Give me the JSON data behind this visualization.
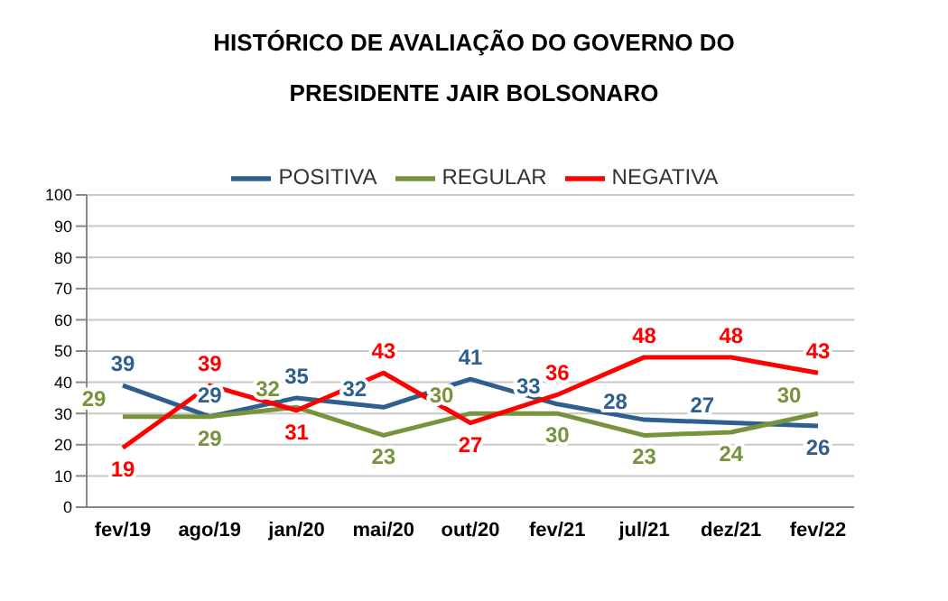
{
  "chart_data": {
    "type": "line",
    "title": "HISTÓRICO DE AVALIAÇÃO DO GOVERNO DO\nPRESIDENTE JAIR BOLSONARO",
    "categories": [
      "fev/19",
      "ago/19",
      "jan/20",
      "mai/20",
      "out/20",
      "fev/21",
      "jul/21",
      "dez/21",
      "fev/22"
    ],
    "series": [
      {
        "name": "POSITIVA",
        "color": "#2f5f8f",
        "values": [
          39,
          29,
          35,
          32,
          41,
          33,
          28,
          27,
          26
        ]
      },
      {
        "name": "REGULAR",
        "color": "#77933c",
        "values": [
          29,
          29,
          32,
          23,
          30,
          30,
          23,
          24,
          30
        ]
      },
      {
        "name": "NEGATIVA",
        "color": "#ff0000",
        "values": [
          19,
          39,
          31,
          43,
          27,
          36,
          48,
          48,
          43
        ]
      }
    ],
    "ylim": [
      0,
      100
    ],
    "yticks": [
      0,
      10,
      20,
      30,
      40,
      50,
      60,
      70,
      80,
      90,
      100
    ],
    "grid": "y",
    "legend": "top",
    "data_labels": true,
    "marker": "none",
    "line_style": "solid"
  }
}
